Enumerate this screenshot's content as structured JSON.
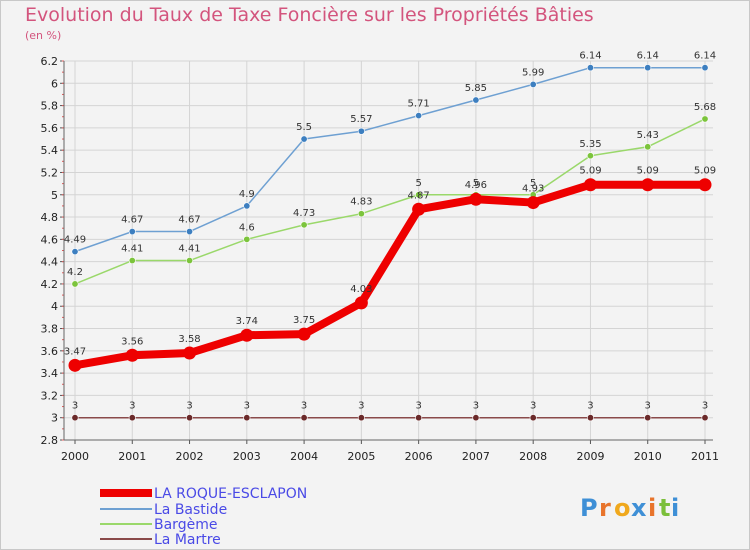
{
  "chart_data": {
    "type": "line",
    "title": "Evolution du Taux de Taxe Foncière sur les Propriétés Bâties",
    "unit_label": "(en %)",
    "xlabel": "",
    "ylabel": "(en %)",
    "categories": [
      "2000",
      "2001",
      "2002",
      "2003",
      "2004",
      "2005",
      "2006",
      "2007",
      "2008",
      "2009",
      "2010",
      "2011"
    ],
    "ylim": [
      2.8,
      6.2
    ],
    "yticks": [
      2.8,
      3,
      3.2,
      3.4,
      3.6,
      3.8,
      4,
      4.2,
      4.4,
      4.6,
      4.8,
      5,
      5.2,
      5.4,
      5.6,
      5.8,
      6,
      6.2
    ],
    "ytick_labels": [
      "2.8",
      "3",
      "3.2",
      "3.4",
      "3.6",
      "3.8",
      "4",
      "4.2",
      "4.4",
      "4.6",
      "4.8",
      "5",
      "5.2",
      "5.4",
      "5.6",
      "5.8",
      "6",
      "6.2"
    ],
    "legend_position": "bottom-left",
    "series": [
      {
        "name": "LA ROQUE-ESCLAPON",
        "color": "#ee0000",
        "marker_color": "#ee0000",
        "values": [
          3.47,
          3.56,
          3.58,
          3.74,
          3.75,
          4.03,
          4.87,
          4.96,
          4.93,
          5.09,
          5.09,
          5.09
        ],
        "labels": [
          "3.47",
          "3.56",
          "3.58",
          "3.74",
          "3.75",
          "4.03",
          "4.87",
          "4.96",
          "4.93",
          "5.09",
          "5.09",
          "5.09"
        ]
      },
      {
        "name": "La Bastide",
        "color": "#6ea0d2",
        "marker_color": "#3d7fc0",
        "values": [
          4.49,
          4.67,
          4.67,
          4.9,
          5.5,
          5.57,
          5.71,
          5.85,
          5.99,
          6.14,
          6.14,
          6.14
        ],
        "labels": [
          "4.49",
          "4.67",
          "4.67",
          "4.9",
          "5.5",
          "5.57",
          "5.71",
          "5.85",
          "5.99",
          "6.14",
          "6.14",
          "6.14"
        ]
      },
      {
        "name": "Bargème",
        "color": "#9ad86a",
        "marker_color": "#7cc43c",
        "values": [
          4.2,
          4.41,
          4.41,
          4.6,
          4.73,
          4.83,
          5,
          5,
          5,
          5.35,
          5.43,
          5.68
        ],
        "labels": [
          "4.2",
          "4.41",
          "4.41",
          "4.6",
          "4.73",
          "4.83",
          "5",
          "5",
          "5",
          "5.35",
          "5.43",
          "5.68"
        ]
      },
      {
        "name": "La Martre",
        "color": "#8a4a4a",
        "marker_color": "#6b2a2a",
        "values": [
          3,
          3,
          3,
          3,
          3,
          3,
          3,
          3,
          3,
          3,
          3,
          3
        ],
        "labels": [
          "3",
          "3",
          "3",
          "3",
          "3",
          "3",
          "3",
          "3",
          "3",
          "3",
          "3",
          "3"
        ]
      }
    ]
  },
  "brand": {
    "letters": [
      "P",
      "r",
      "o",
      "x",
      "i",
      "t",
      "i"
    ],
    "colors": [
      "#3e8fd6",
      "#e8742b",
      "#f0a81c",
      "#3e8fd6",
      "#e8742b",
      "#7bbf3a",
      "#3e8fd6"
    ]
  }
}
